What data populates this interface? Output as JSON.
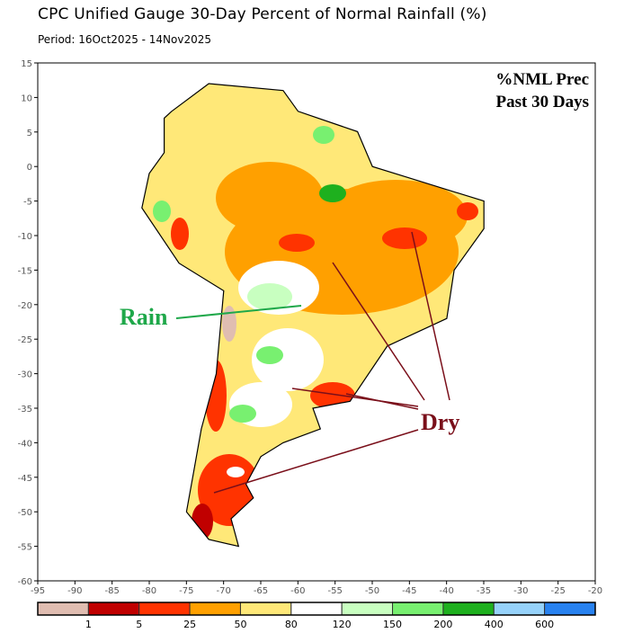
{
  "header": {
    "title": "CPC Unified Gauge 30-Day Percent of Normal Rainfall (%)",
    "period": "Period: 16Oct2025 - 14Nov2025"
  },
  "map": {
    "inset_title": [
      "%NML Prec",
      "Past 30 Days"
    ],
    "lon_range": [
      -95,
      -20
    ],
    "lat_range": [
      -60,
      15
    ],
    "lon_ticks": [
      "-95",
      "-90",
      "-85",
      "-80",
      "-75",
      "-70",
      "-65",
      "-60",
      "-55",
      "-50",
      "-45",
      "-40",
      "-35",
      "-30",
      "-25",
      "-20"
    ],
    "lat_ticks": [
      "15",
      "10",
      "5",
      "0",
      "-5",
      "-10",
      "-15",
      "-20",
      "-25",
      "-30",
      "-35",
      "-40",
      "-45",
      "-50",
      "-55",
      "-60"
    ],
    "annotations": {
      "rain": "Rain",
      "dry": "Dry",
      "rain_color": "#1fa84a",
      "dry_color": "#7a0f1a"
    }
  },
  "colorbar": {
    "colors": [
      "#e0bdb1",
      "#c00000",
      "#ff3300",
      "#ffa000",
      "#ffe878",
      "#ffffff",
      "#c8ffc0",
      "#78f070",
      "#1eb01e",
      "#96d2fa",
      "#2882f0"
    ],
    "labels": [
      "1",
      "5",
      "25",
      "50",
      "80",
      "120",
      "150",
      "200",
      "400",
      "600"
    ]
  }
}
